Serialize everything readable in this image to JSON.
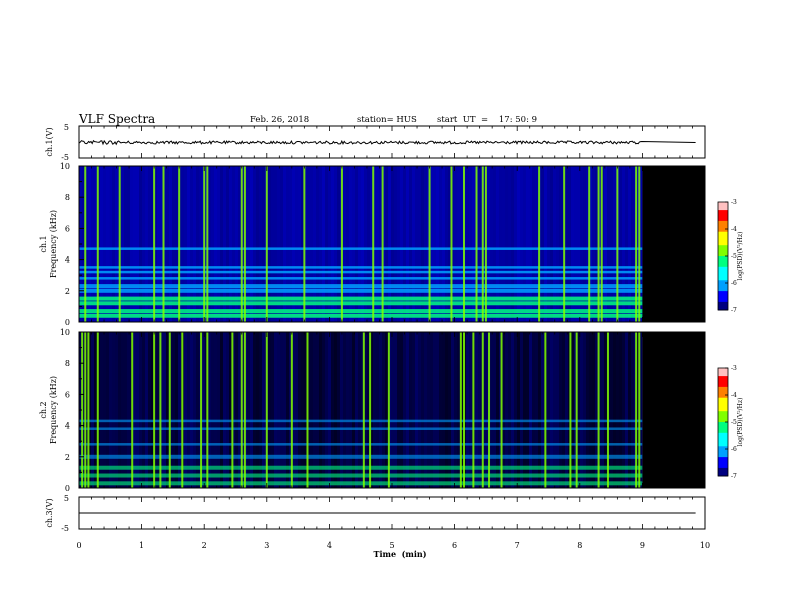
{
  "header": {
    "title": "VLF Spectra",
    "date": "Feb. 26, 2018",
    "station": "station= HUS",
    "start_ut": "start  UT  =    17: 50: 9"
  },
  "chart_data": [
    {
      "type": "line",
      "panel": "ch1-waveform",
      "ylabel": "ch.1(V)",
      "ylim": [
        -5,
        5
      ],
      "yticks": [
        "5",
        "-5"
      ],
      "xlim": [
        0,
        10
      ],
      "series": [
        {
          "values": "noise trace around 0 V, amplitude ~0.3 V, 0-9 min; flat 0 V 9-9.85 min"
        }
      ]
    },
    {
      "type": "heatmap",
      "panel": "ch1-spectrogram",
      "ylabel_line1": "ch.1",
      "ylabel_line2": "Frequency (kHz)",
      "ylim": [
        0,
        10
      ],
      "yticks": [
        "0",
        "2",
        "4",
        "6",
        "8",
        "10"
      ],
      "xlim": [
        0,
        10
      ],
      "data_end_min": 9.0,
      "colorbar": {
        "label": "log(PSD)(V²/Hz)",
        "range": [
          -7,
          -3
        ],
        "ticks": [
          "-3",
          "-4",
          "-5",
          "-6",
          "-7"
        ]
      },
      "bands_khz": [
        0.4,
        0.7,
        1.2,
        1.5,
        2.0,
        2.3,
        2.8,
        3.2,
        3.5,
        4.7
      ],
      "vertical_bursts_min": [
        0.1,
        0.3,
        0.65,
        1.2,
        1.35,
        1.6,
        2.0,
        2.05,
        2.6,
        2.65,
        3.0,
        3.6,
        4.2,
        4.7,
        4.85,
        5.6,
        5.95,
        6.15,
        6.35,
        6.45,
        6.5,
        7.35,
        7.75,
        8.15,
        8.3,
        8.35,
        8.6,
        8.9,
        8.95
      ]
    },
    {
      "type": "heatmap",
      "panel": "ch2-spectrogram",
      "ylabel_line1": "ch.2",
      "ylabel_line2": "Frequency (kHz)",
      "ylim": [
        0,
        10
      ],
      "yticks": [
        "0",
        "2",
        "4",
        "6",
        "8",
        "10"
      ],
      "xlim": [
        0,
        10
      ],
      "data_end_min": 9.0,
      "colorbar": {
        "label": "log(PSD)(V²/Hz)",
        "range": [
          -7,
          -3
        ],
        "ticks": [
          "-3",
          "-4",
          "-5",
          "-6",
          "-7"
        ]
      },
      "bands_khz": [
        0.3,
        0.8,
        1.3,
        2.0,
        2.8,
        3.8,
        4.3
      ],
      "vertical_bursts_min": [
        0.05,
        0.1,
        0.15,
        0.3,
        0.85,
        1.2,
        1.3,
        1.45,
        1.65,
        1.95,
        2.05,
        2.45,
        2.6,
        2.65,
        3.0,
        3.4,
        3.65,
        4.55,
        4.65,
        4.95,
        6.1,
        6.15,
        6.3,
        6.45,
        6.55,
        6.75,
        7.45,
        7.85,
        7.95,
        8.3,
        8.45,
        8.9,
        8.95
      ]
    },
    {
      "type": "line",
      "panel": "ch3-waveform",
      "ylabel": "ch.3(V)",
      "ylim": [
        -5,
        5
      ],
      "yticks": [
        "5",
        "-5"
      ],
      "xlim": [
        0,
        10
      ],
      "series": [
        {
          "values": "flat trace at 0 V, 0-9.85 min"
        }
      ]
    }
  ],
  "x_axis": {
    "label": "Time  (min)",
    "ticks": [
      "0",
      "1",
      "2",
      "3",
      "4",
      "5",
      "6",
      "7",
      "8",
      "9",
      "10"
    ]
  },
  "colors": {
    "axis": "#000000",
    "no_data": "#000000",
    "colormap": [
      "#000080",
      "#0000ff",
      "#00a0ff",
      "#00ffff",
      "#00ff80",
      "#80ff00",
      "#ffff00",
      "#ff8000",
      "#ff0000",
      "#ffc0c0"
    ]
  }
}
